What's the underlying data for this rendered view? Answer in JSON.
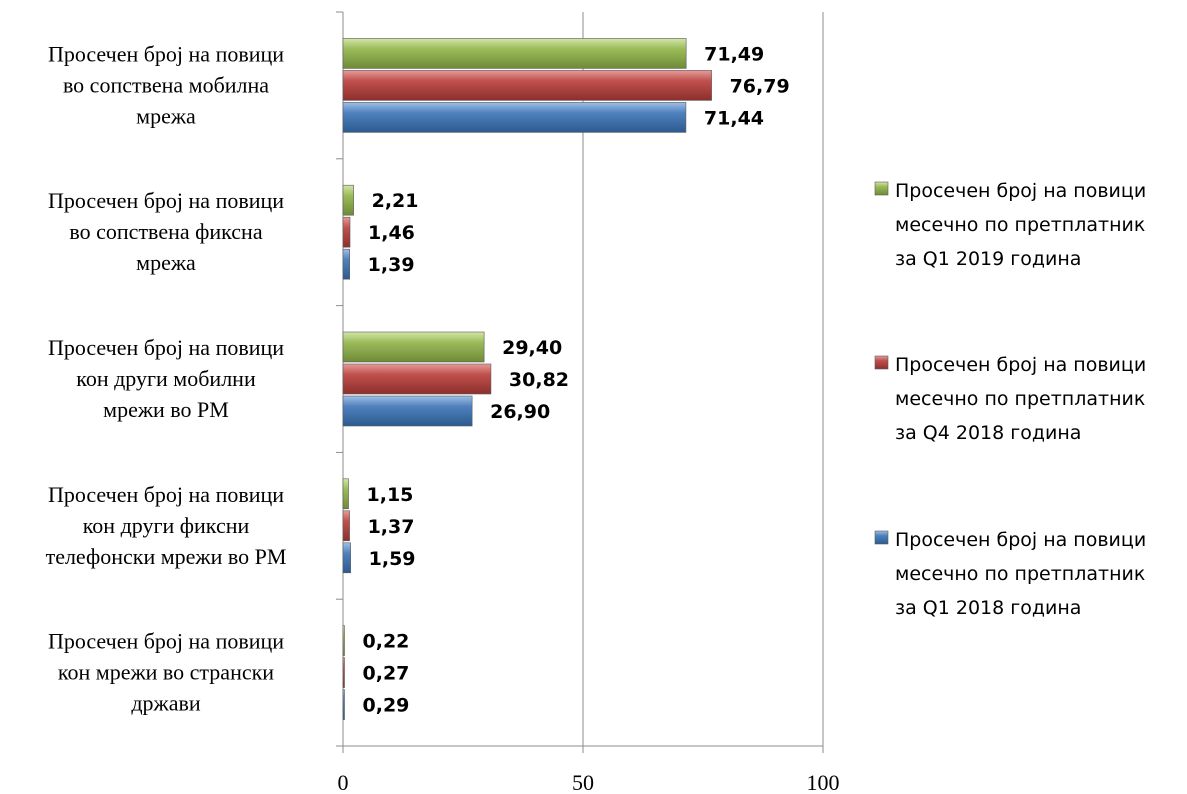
{
  "chart_data": {
    "type": "bar",
    "orientation": "horizontal",
    "title": "",
    "xlabel": "",
    "ylabel": "",
    "xlim": [
      0,
      100
    ],
    "x_ticks": [
      0,
      50,
      100
    ],
    "grid": "vertical major gridlines",
    "legend_position": "right",
    "categories": [
      [
        "Просечен број на повици",
        "во сопствена мобилна",
        "мрежа"
      ],
      [
        "Просечен број на повици",
        "во сопствена фиксна",
        "мрежа"
      ],
      [
        "Просечен број на повици",
        "кон други мобилни",
        "мрежи во РМ"
      ],
      [
        "Просечен број на повици",
        "кон други фиксни",
        "телефонски мрежи во РМ"
      ],
      [
        "Просечен број на повици",
        "кон мрежи во странски",
        "држави"
      ]
    ],
    "series": [
      {
        "name": [
          "Просечен број на повици",
          "месечно по претплатник",
          "за Q1 2019 година"
        ],
        "color": "#9bbb59",
        "values": [
          71.49,
          2.21,
          29.4,
          1.15,
          0.22
        ],
        "labels": [
          "71,49",
          "2,21",
          "29,40",
          "1,15",
          "0,22"
        ]
      },
      {
        "name": [
          "Просечен број на повици",
          "месечно по претплатник",
          "за Q4 2018 година"
        ],
        "color": "#c0504d",
        "values": [
          76.79,
          1.46,
          30.82,
          1.37,
          0.27
        ],
        "labels": [
          "76,79",
          "1,46",
          "30,82",
          "1,37",
          "0,27"
        ]
      },
      {
        "name": [
          "Просечен број на повици",
          "месечно по претплатник",
          "за Q1 2018 година"
        ],
        "color": "#4f81bd",
        "values": [
          71.44,
          1.39,
          26.9,
          1.59,
          0.29
        ],
        "labels": [
          "71,44",
          "1,39",
          "26,90",
          "1,59",
          "0,29"
        ]
      }
    ]
  }
}
